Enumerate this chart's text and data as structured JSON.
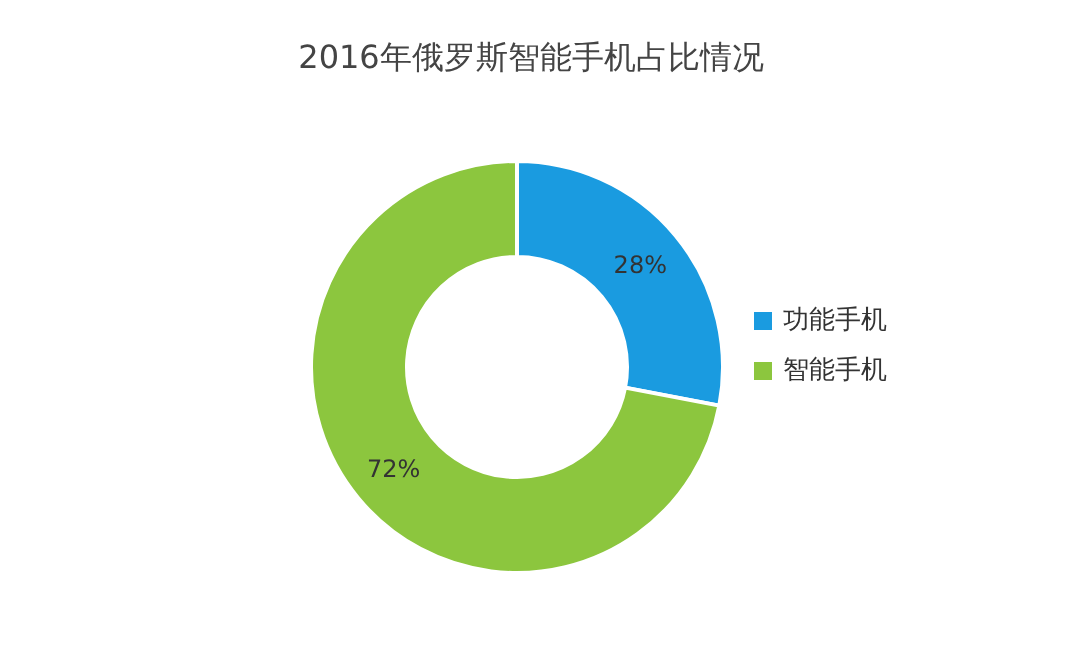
{
  "chart_data": {
    "type": "donut",
    "title": "2016年俄罗斯智能手机占比情况",
    "categories": [
      "功能手机",
      "智能手机"
    ],
    "values": [
      28,
      72
    ],
    "colors": [
      "#1a9be0",
      "#8cc63e"
    ],
    "value_labels": [
      "28%",
      "72%"
    ],
    "legend": "right"
  }
}
